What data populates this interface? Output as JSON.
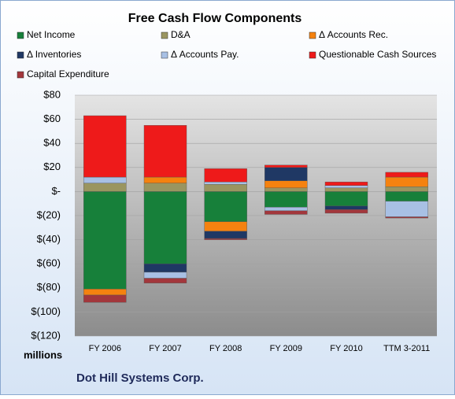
{
  "chart_data": {
    "type": "stacked-bar",
    "title": "Free Cash Flow Components",
    "y_unit_label": "millions",
    "footer": "Dot Hill Systems Corp.",
    "categories": [
      "FY 2006",
      "FY 2007",
      "FY 2008",
      "FY 2009",
      "FY 2010",
      "TTM 3-2011"
    ],
    "series": [
      {
        "name": "Net Income",
        "color": "#17803a",
        "values": [
          -81,
          -60,
          -25,
          -13,
          -12,
          -8
        ]
      },
      {
        "name": "D&A",
        "color": "#9a9560",
        "values": [
          7,
          7,
          6,
          3,
          3,
          4
        ]
      },
      {
        "name": "Δ Accounts Rec.",
        "color": "#f5820f",
        "values": [
          -5,
          5,
          -8,
          6,
          0,
          8
        ]
      },
      {
        "name": "Δ Inventories",
        "color": "#1f3864",
        "values": [
          0,
          -7,
          -6,
          11,
          -3,
          0
        ]
      },
      {
        "name": "Δ Accounts Pay.",
        "color": "#a8c0e4",
        "values": [
          5,
          -5,
          2,
          -3,
          2,
          -13
        ]
      },
      {
        "name": "Questionable Cash Sources",
        "color": "#ee1a1a",
        "values": [
          51,
          43,
          11,
          2,
          3,
          4
        ]
      },
      {
        "name": "Capital Expenditure",
        "color": "#a3373c",
        "values": [
          -6,
          -4,
          -1,
          -3,
          -3,
          -1
        ]
      }
    ],
    "ylim": [
      -120,
      80
    ],
    "yticks": [
      {
        "value": -120,
        "label": "$(120)"
      },
      {
        "value": -100,
        "label": "$(100)"
      },
      {
        "value": -80,
        "label": "$(80)"
      },
      {
        "value": -60,
        "label": "$(60)"
      },
      {
        "value": -40,
        "label": "$(40)"
      },
      {
        "value": -20,
        "label": "$(20)"
      },
      {
        "value": 0,
        "label": "$-"
      },
      {
        "value": 20,
        "label": "$20"
      },
      {
        "value": 40,
        "label": "$40"
      },
      {
        "value": 60,
        "label": "$60"
      },
      {
        "value": 80,
        "label": "$80"
      }
    ],
    "grid": true
  }
}
